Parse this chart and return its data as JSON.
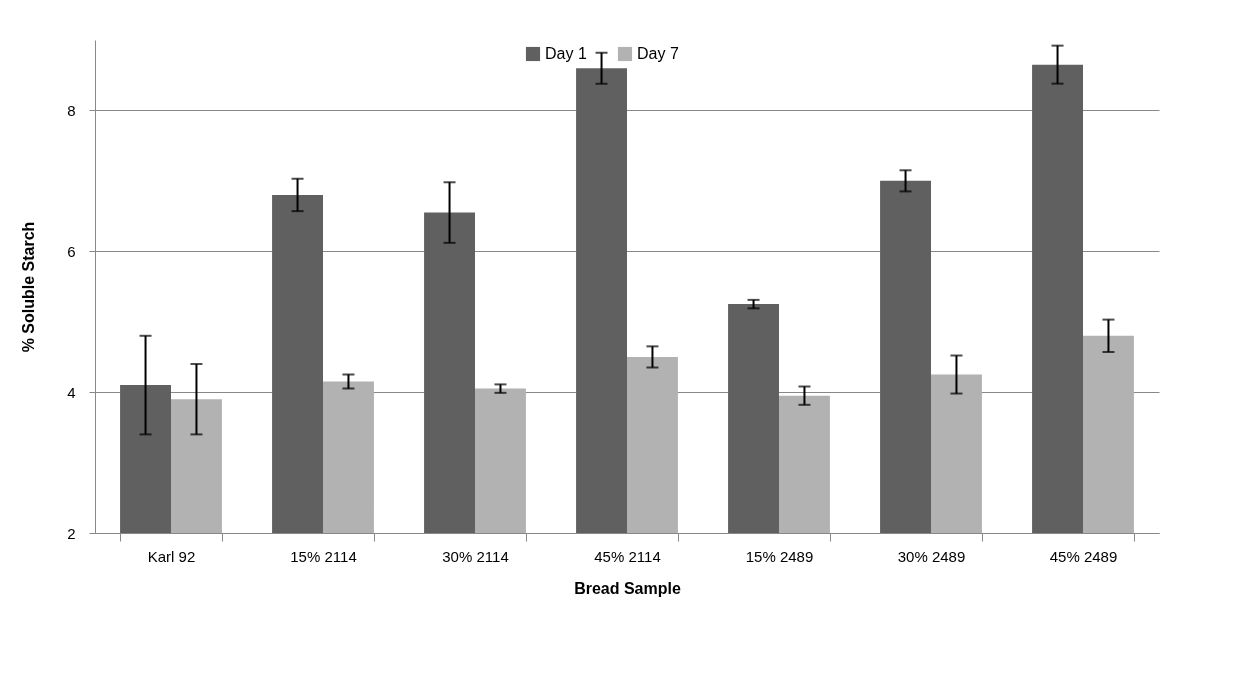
{
  "chart_data": {
    "type": "bar",
    "xlabel": "Bread Sample",
    "ylabel": "% Soluble Starch",
    "categories": [
      "Karl 92",
      "15% 2114",
      "30% 2114",
      "45% 2114",
      "15% 2489",
      "30% 2489",
      "45% 2489"
    ],
    "series": [
      {
        "name": "Day 1",
        "color": "#606060",
        "values": [
          4.1,
          6.8,
          6.55,
          8.6,
          5.25,
          7.0,
          8.65
        ],
        "errors": [
          0.7,
          0.23,
          0.43,
          0.22,
          0.06,
          0.15,
          0.27
        ]
      },
      {
        "name": "Day 7",
        "color": "#b2b2b2",
        "values": [
          3.9,
          4.15,
          4.05,
          4.5,
          3.95,
          4.25,
          4.8
        ],
        "errors": [
          0.5,
          0.1,
          0.06,
          0.15,
          0.13,
          0.27,
          0.23
        ]
      }
    ],
    "ylim": [
      2,
      9
    ],
    "yticks": [
      2,
      4,
      6,
      8
    ],
    "grid": "y",
    "legend": "top"
  }
}
